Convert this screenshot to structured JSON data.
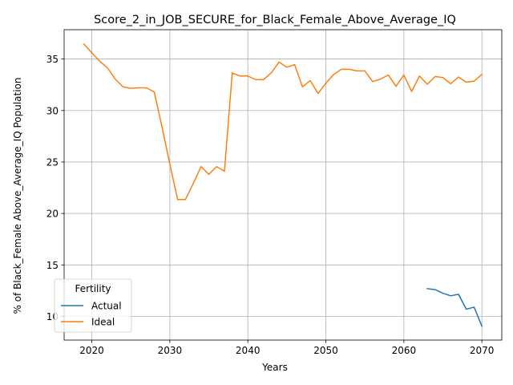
{
  "chart_data": {
    "type": "line",
    "title": "Score_2_in_JOB_SECURE_for_Black_Female_Above_Average_IQ",
    "xlabel": "Years",
    "ylabel": "% of Black_Female Above_Average_IQ Population",
    "xlim": [
      2016.45,
      2072.55
    ],
    "ylim": [
      7.7,
      37.85
    ],
    "xticks": [
      2020,
      2030,
      2040,
      2050,
      2060,
      2070
    ],
    "yticks": [
      10,
      15,
      20,
      25,
      30,
      35
    ],
    "grid": true,
    "legend": {
      "title": "Fertility",
      "placement": "lower-left"
    },
    "series": [
      {
        "name": "Actual",
        "color": "#1f77b4",
        "x": [
          2063,
          2064,
          2065,
          2066,
          2067,
          2068,
          2069,
          2070
        ],
        "y": [
          12.7,
          12.6,
          12.25,
          12.0,
          12.15,
          10.7,
          10.9,
          9.05
        ]
      },
      {
        "name": "Ideal",
        "color": "#ff7f0e",
        "x": [
          2019,
          2020,
          2021,
          2022,
          2023,
          2024,
          2025,
          2026,
          2027,
          2028,
          2029,
          2030,
          2031,
          2032,
          2033,
          2034,
          2035,
          2036,
          2037,
          2038,
          2039,
          2040,
          2041,
          2042,
          2043,
          2044,
          2045,
          2046,
          2047,
          2048,
          2049,
          2050,
          2051,
          2052,
          2053,
          2054,
          2055,
          2056,
          2057,
          2058,
          2059,
          2060,
          2061,
          2062,
          2063,
          2064,
          2065,
          2066,
          2067,
          2068,
          2069,
          2070
        ],
        "y": [
          36.45,
          35.6,
          34.8,
          34.15,
          33.05,
          32.3,
          32.15,
          32.2,
          32.2,
          31.8,
          28.4,
          24.8,
          21.35,
          21.35,
          22.9,
          24.55,
          23.8,
          24.55,
          24.1,
          33.65,
          33.35,
          33.35,
          33.0,
          33.0,
          33.65,
          34.7,
          34.2,
          34.45,
          32.3,
          32.9,
          31.65,
          32.65,
          33.5,
          34.0,
          34.0,
          33.85,
          33.85,
          32.8,
          33.05,
          33.45,
          32.35,
          33.45,
          31.85,
          33.35,
          32.55,
          33.3,
          33.2,
          32.6,
          33.25,
          32.75,
          32.85,
          33.5
        ]
      }
    ]
  }
}
